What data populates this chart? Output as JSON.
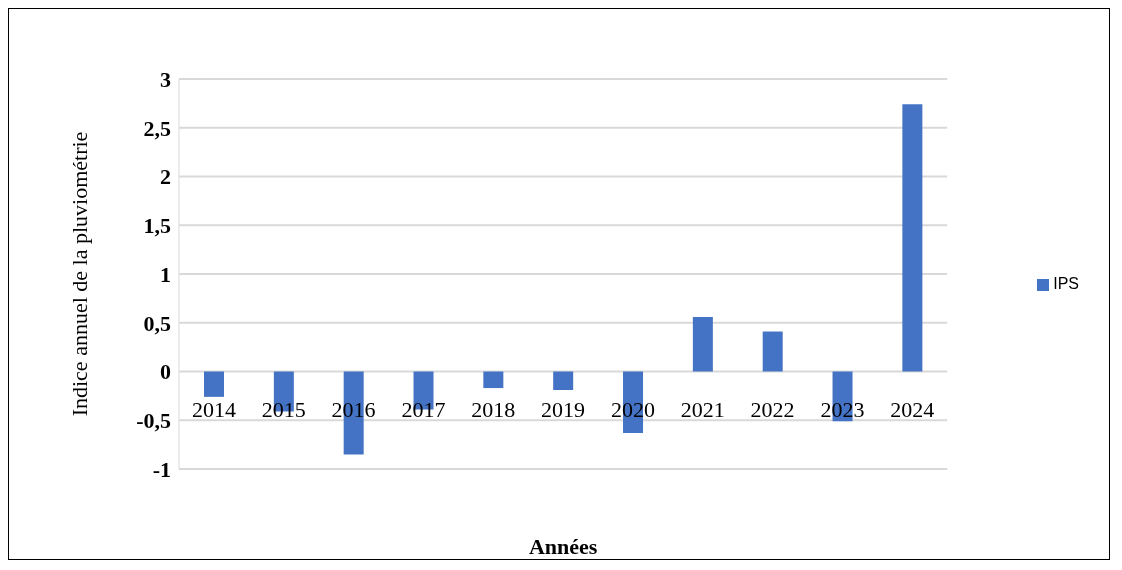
{
  "chart_data": {
    "type": "bar",
    "xlabel": "Années",
    "ylabel": "Indice annuel de la pluviométrie",
    "categories": [
      "2014",
      "2015",
      "2016",
      "2017",
      "2018",
      "2019",
      "2020",
      "2021",
      "2022",
      "2023",
      "2024"
    ],
    "series": [
      {
        "name": "IPS",
        "color": "#4472c4",
        "values": [
          -0.26,
          -0.41,
          -0.85,
          -0.39,
          -0.17,
          -0.19,
          -0.63,
          0.56,
          0.41,
          -0.51,
          2.74
        ]
      }
    ],
    "ylim": [
      -1,
      3
    ],
    "yticks": [
      -1,
      {
        "value": -0.5,
        "label": "-0,5"
      },
      0,
      {
        "value": 0.5,
        "label": "0,5"
      },
      1,
      {
        "value": 1.5,
        "label": "1,5"
      },
      2,
      {
        "value": 2.5,
        "label": "2,5"
      },
      3
    ],
    "grid": "y",
    "legend": "right"
  }
}
